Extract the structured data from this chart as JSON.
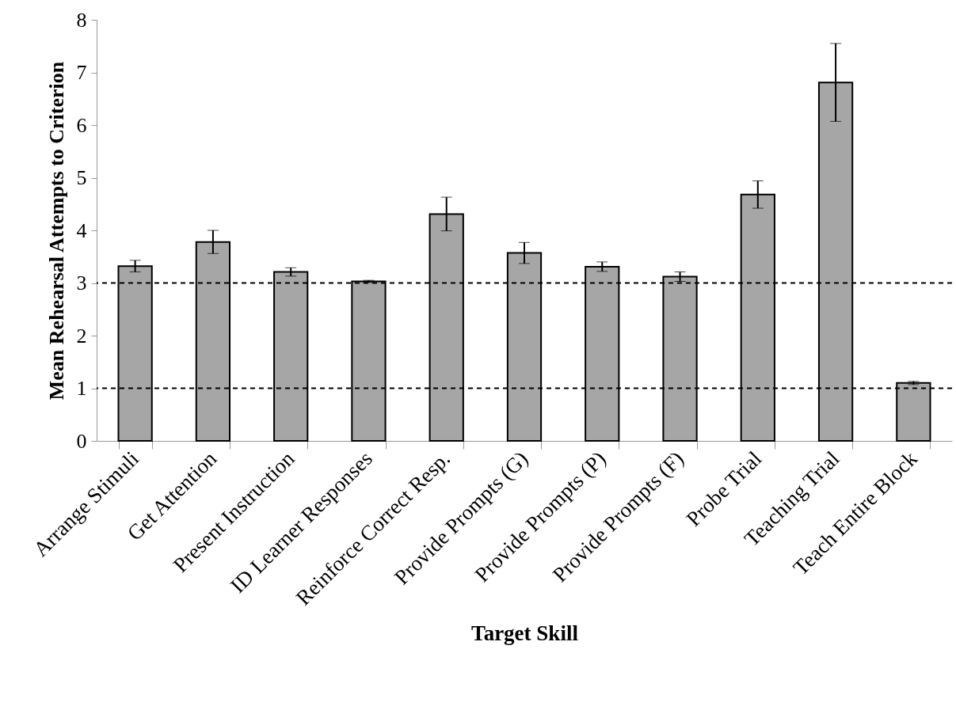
{
  "chart_data": {
    "type": "bar",
    "xlabel": "Target Skill",
    "ylabel": "Mean Rehearsal Attempts to Criterion",
    "categories": [
      "Arrange Stimuli",
      "Get Attention",
      "Present Instruction",
      "ID Learner Responses",
      "Reinforce Correct Resp.",
      "Provide Prompts (G)",
      "Provide Prompts (P)",
      "Provide Prompts (F)",
      "Probe Trial",
      "Teaching Trial",
      "Teach Entire Block"
    ],
    "values": [
      3.32,
      3.78,
      3.21,
      3.03,
      4.31,
      3.57,
      3.31,
      3.12,
      4.68,
      6.81,
      1.1
    ],
    "errors": [
      0.11,
      0.22,
      0.08,
      0.02,
      0.32,
      0.2,
      0.09,
      0.09,
      0.26,
      0.74,
      0.03
    ],
    "color": "#a6a6a6",
    "ylim": [
      0,
      8
    ],
    "yticks": [
      0,
      1,
      2,
      3,
      4,
      5,
      6,
      7,
      8
    ],
    "grid": false,
    "ref_lines": [
      {
        "axis": "y",
        "value": 3,
        "line_style": "dashed"
      },
      {
        "axis": "y",
        "value": 1,
        "line_style": "dashed"
      }
    ]
  }
}
